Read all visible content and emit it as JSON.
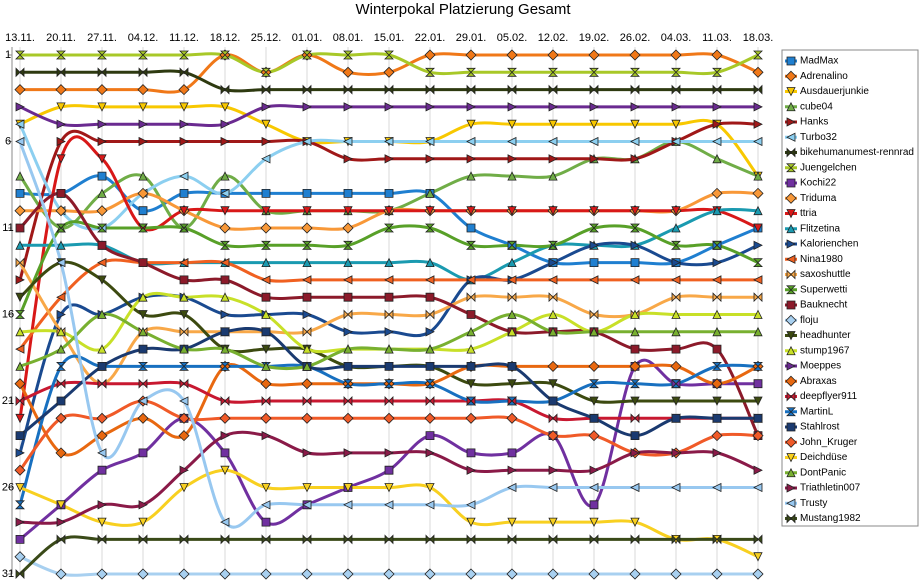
{
  "chart_data": {
    "type": "line",
    "title": "Winterpokal Platzierung Gesamt",
    "categories": [
      "13.11.",
      "20.11.",
      "27.11.",
      "04.12.",
      "11.12.",
      "18.12.",
      "25.12.",
      "01.01.",
      "08.01.",
      "15.01.",
      "22.01.",
      "29.01.",
      "05.02.",
      "12.02.",
      "19.02.",
      "26.02.",
      "04.03.",
      "11.03.",
      "18.03."
    ],
    "ylim": [
      31,
      1
    ],
    "yticks": [
      1,
      6,
      11,
      16,
      21,
      26,
      31
    ],
    "grid": true,
    "smooth": true,
    "legend": "right",
    "series": [
      {
        "name": "MadMax",
        "color": "#1f7fd0",
        "marker": "square",
        "values": [
          9,
          9,
          8,
          10,
          9,
          9,
          9,
          9,
          9,
          9,
          9,
          11,
          12,
          13,
          13,
          13,
          13,
          12,
          11
        ]
      },
      {
        "name": "Adrenalino",
        "color": "#f07818",
        "marker": "diamond",
        "values": [
          3,
          3,
          3,
          3,
          3,
          1,
          2,
          1,
          2,
          2,
          1,
          1,
          1,
          1,
          1,
          1,
          1,
          1,
          2
        ]
      },
      {
        "name": "Ausdauerjunkie",
        "color": "#f8c800",
        "marker": "triangle-down",
        "values": [
          5,
          4,
          4,
          4,
          4,
          4,
          5,
          6,
          6,
          6,
          6,
          5,
          5,
          5,
          5,
          5,
          5,
          5,
          8
        ]
      },
      {
        "name": "cube04",
        "color": "#70ad47",
        "marker": "triangle",
        "values": [
          8,
          11,
          9,
          8,
          11,
          8,
          10,
          10,
          10,
          10,
          9,
          8,
          8,
          8,
          7,
          7,
          6,
          7,
          8
        ]
      },
      {
        "name": "Hanks",
        "color": "#a01818",
        "marker": "triangle-right",
        "values": [
          14,
          6,
          6,
          6,
          6,
          6,
          6,
          6,
          7,
          7,
          7,
          7,
          7,
          7,
          7,
          7,
          6,
          5,
          5
        ]
      },
      {
        "name": "Turbo32",
        "color": "#8ccff0",
        "marker": "triangle-left",
        "values": [
          5,
          10,
          11,
          9,
          8,
          9,
          7,
          6,
          6,
          6,
          6,
          6,
          6,
          6,
          6,
          6,
          6,
          6,
          6
        ]
      },
      {
        "name": "bikehumanumest-rennrad",
        "color": "#2e3a10",
        "marker": "bowtie",
        "values": [
          2,
          2,
          2,
          2,
          2,
          3,
          3,
          3,
          3,
          3,
          3,
          3,
          3,
          3,
          3,
          3,
          3,
          3,
          3
        ]
      },
      {
        "name": "Juengelchen",
        "color": "#a8c828",
        "marker": "hourglass",
        "values": [
          1,
          1,
          1,
          1,
          1,
          1,
          2,
          1,
          1,
          1,
          2,
          2,
          2,
          2,
          2,
          2,
          2,
          2,
          1
        ]
      },
      {
        "name": "Kochi22",
        "color": "#7030a0",
        "marker": "square",
        "values": [
          29,
          27,
          25,
          24,
          22,
          24,
          28,
          27,
          26,
          25,
          23,
          24,
          24,
          23,
          27,
          19,
          20,
          20,
          20
        ]
      },
      {
        "name": "Triduma",
        "color": "#f89838",
        "marker": "diamond",
        "values": [
          10,
          10,
          10,
          9,
          10,
          11,
          11,
          11,
          11,
          10,
          10,
          10,
          10,
          10,
          10,
          10,
          10,
          9,
          9
        ]
      },
      {
        "name": "ttria",
        "color": "#d81818",
        "marker": "triangle-down",
        "values": [
          22,
          7,
          7,
          11,
          10,
          10,
          10,
          10,
          10,
          10,
          10,
          10,
          10,
          10,
          10,
          10,
          10,
          10,
          11
        ]
      },
      {
        "name": "Flitzetina",
        "color": "#1a9ab0",
        "marker": "triangle",
        "values": [
          12,
          12,
          12,
          13,
          13,
          13,
          13,
          13,
          13,
          13,
          13,
          14,
          13,
          12,
          12,
          12,
          11,
          10,
          10
        ]
      },
      {
        "name": "Kalorienchen",
        "color": "#1a4a90",
        "marker": "triangle-right",
        "values": [
          24,
          16,
          16,
          15,
          15,
          16,
          16,
          16,
          17,
          17,
          17,
          14,
          14,
          13,
          12,
          12,
          13,
          13,
          12
        ]
      },
      {
        "name": "Nina1980",
        "color": "#f06020",
        "marker": "triangle-left",
        "values": [
          18,
          15,
          13,
          13,
          13,
          13,
          14,
          14,
          14,
          14,
          14,
          14,
          14,
          14,
          14,
          14,
          14,
          14,
          14
        ]
      },
      {
        "name": "saxoshuttle",
        "color": "#f8a848",
        "marker": "bowtie",
        "values": [
          13,
          17,
          20,
          17,
          17,
          17,
          17,
          17,
          16,
          16,
          16,
          15,
          15,
          15,
          16,
          16,
          15,
          15,
          15
        ]
      },
      {
        "name": "Superwetti",
        "color": "#58a028",
        "marker": "hourglass",
        "values": [
          16,
          11,
          11,
          11,
          11,
          12,
          12,
          12,
          12,
          11,
          11,
          12,
          12,
          12,
          11,
          11,
          12,
          12,
          13
        ]
      },
      {
        "name": "Bauknecht",
        "color": "#8c1a2a",
        "marker": "square",
        "values": [
          11,
          9,
          12,
          13,
          14,
          14,
          15,
          15,
          15,
          15,
          15,
          16,
          17,
          17,
          17,
          18,
          18,
          18,
          23
        ]
      },
      {
        "name": "floju",
        "color": "#a8d0f0",
        "marker": "diamond",
        "values": [
          30,
          31,
          31,
          31,
          31,
          31,
          31,
          31,
          31,
          31,
          31,
          31,
          31,
          31,
          31,
          31,
          31,
          31,
          31
        ]
      },
      {
        "name": "headhunter",
        "color": "#3c4a10",
        "marker": "triangle-down",
        "values": [
          15,
          13,
          14,
          16,
          16,
          18,
          18,
          18,
          19,
          19,
          19,
          20,
          20,
          20,
          21,
          21,
          21,
          21,
          21
        ]
      },
      {
        "name": "stump1967",
        "color": "#c8e028",
        "marker": "triangle",
        "values": [
          17,
          17,
          18,
          15,
          15,
          15,
          16,
          18,
          18,
          18,
          18,
          18,
          17,
          16,
          17,
          16,
          16,
          16,
          16
        ]
      },
      {
        "name": "Moeppes",
        "color": "#6a2a90",
        "marker": "triangle-right",
        "values": [
          4,
          5,
          5,
          5,
          5,
          5,
          4,
          4,
          4,
          4,
          4,
          4,
          4,
          4,
          4,
          4,
          4,
          4,
          4
        ]
      },
      {
        "name": "Abraxas",
        "color": "#e86810",
        "marker": "diamond",
        "values": [
          20,
          24,
          23,
          22,
          23,
          19,
          20,
          20,
          20,
          20,
          20,
          19,
          19,
          19,
          19,
          19,
          19,
          20,
          19
        ]
      },
      {
        "name": "deepflyer911",
        "color": "#c81830",
        "marker": "bowtie",
        "values": [
          21,
          20,
          20,
          20,
          20,
          21,
          21,
          21,
          21,
          21,
          21,
          21,
          21,
          22,
          22,
          22,
          22,
          22,
          22
        ]
      },
      {
        "name": "MartinL",
        "color": "#1870c0",
        "marker": "hourglass",
        "values": [
          27,
          19,
          19,
          19,
          19,
          19,
          19,
          19,
          20,
          20,
          20,
          21,
          21,
          21,
          20,
          20,
          20,
          19,
          19
        ]
      },
      {
        "name": "Stahlrost",
        "color": "#1a3a70",
        "marker": "square",
        "values": [
          23,
          21,
          19,
          18,
          18,
          17,
          17,
          19,
          19,
          19,
          19,
          19,
          19,
          21,
          22,
          23,
          22,
          22,
          22
        ]
      },
      {
        "name": "John_Kruger",
        "color": "#f05a28",
        "marker": "diamond",
        "values": [
          25,
          22,
          22,
          21,
          22,
          22,
          22,
          22,
          22,
          22,
          22,
          22,
          22,
          23,
          23,
          24,
          24,
          23,
          23
        ]
      },
      {
        "name": "Deichdüse",
        "color": "#f8d020",
        "marker": "triangle-down",
        "values": [
          26,
          27,
          28,
          28,
          26,
          25,
          26,
          26,
          26,
          26,
          26,
          28,
          28,
          28,
          28,
          28,
          29,
          29,
          30
        ]
      },
      {
        "name": "DontPanic",
        "color": "#78b030",
        "marker": "triangle",
        "values": [
          19,
          18,
          16,
          17,
          18,
          18,
          19,
          19,
          18,
          18,
          18,
          17,
          16,
          17,
          17,
          17,
          17,
          17,
          17
        ]
      },
      {
        "name": "Triathletin007",
        "color": "#8a1a48",
        "marker": "triangle-right",
        "values": [
          28,
          28,
          27,
          27,
          25,
          23,
          23,
          24,
          24,
          24,
          24,
          25,
          25,
          25,
          25,
          24,
          24,
          24,
          25
        ]
      },
      {
        "name": "Trusty",
        "color": "#98c8f0",
        "marker": "triangle-left",
        "values": [
          6,
          13,
          24,
          21,
          21,
          28,
          27,
          27,
          27,
          27,
          27,
          27,
          26,
          26,
          26,
          26,
          26,
          26,
          26
        ]
      },
      {
        "name": "Mustang1982",
        "color": "#3a4a18",
        "marker": "bowtie",
        "values": [
          31,
          29,
          29,
          29,
          29,
          29,
          29,
          29,
          29,
          29,
          29,
          29,
          29,
          29,
          29,
          29,
          29,
          29,
          29
        ]
      }
    ]
  }
}
